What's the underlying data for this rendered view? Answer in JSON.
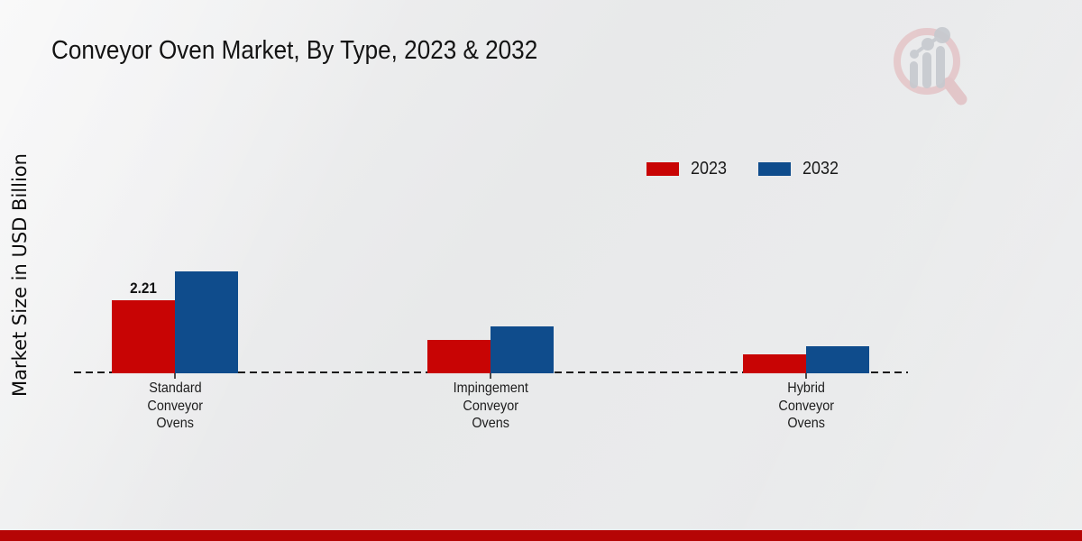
{
  "header": {
    "title": "Conveyor Oven Market, By Type, 2023 & 2032"
  },
  "branding": {
    "logo_name": "magnifier-bar-chart-watermark",
    "accent_bar_color": "#b50505",
    "logo_ring_color": "#e2bcbf",
    "logo_bars_color": "#c6c9cf"
  },
  "chart_data": {
    "type": "bar",
    "title": "Conveyor Oven Market, By Type, 2023 & 2032",
    "xlabel": "",
    "ylabel": "Market Size in USD Billion",
    "categories": [
      "Standard Conveyor Ovens",
      "Impingement Conveyor Ovens",
      "Hybrid Conveyor Ovens"
    ],
    "series": [
      {
        "name": "2023",
        "color": "#c80404",
        "values": [
          2.21,
          1.01,
          0.57
        ]
      },
      {
        "name": "2032",
        "color": "#0f4c8c",
        "values": [
          3.08,
          1.42,
          0.83
        ]
      }
    ],
    "value_labels": [
      {
        "category": "Standard Conveyor Ovens",
        "series": "2023",
        "text": "2.21"
      }
    ],
    "legend_position": "top-right",
    "baseline_style": "dashed",
    "grid": false,
    "y_axis_ticks_visible": false
  }
}
